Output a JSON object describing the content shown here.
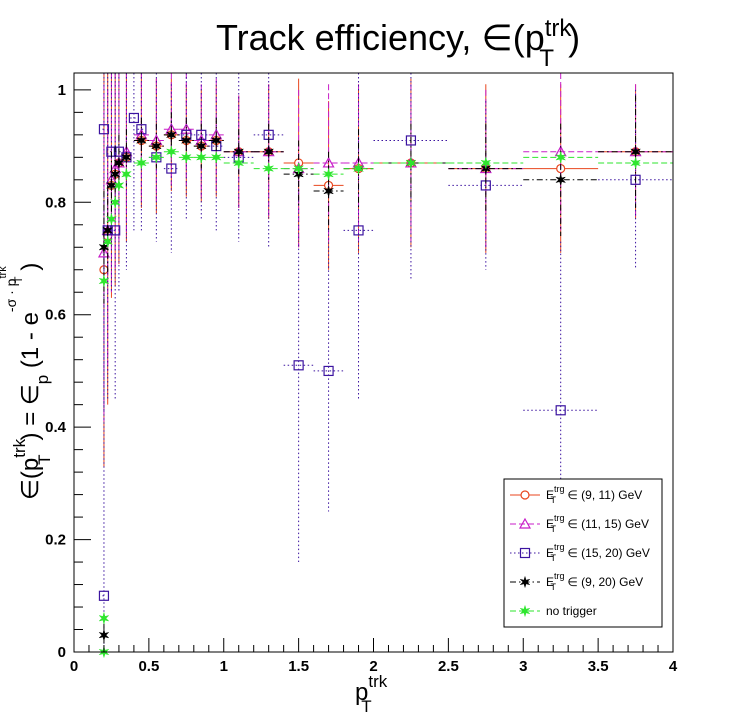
{
  "chart_data": {
    "type": "scatter",
    "title": "Track efficiency, ∈(p",
    "title_sup": "trk",
    "title_sub": "T",
    "title_end": ")",
    "xlabel": "p",
    "xlabel_sup": "trk",
    "xlabel_sub": "T",
    "ylabel_parts": {
      "a": "∈(p",
      "a_sup": "trk",
      "a_sub": "T",
      "b": ") = ∈",
      "b_sub": "p",
      "c": " (1 - e",
      "exp": "-σ · p",
      "exp_sup": "trk",
      "exp_sub": "T",
      "d": ")"
    },
    "xlim": [
      0,
      4
    ],
    "ylim": [
      0,
      1.03
    ],
    "xticks": [
      0,
      0.5,
      1,
      1.5,
      2,
      2.5,
      3,
      3.5,
      4
    ],
    "xtick_labels": [
      "0",
      "0.5",
      "1",
      "1.5",
      "2",
      "2.5",
      "3",
      "3.5",
      "4"
    ],
    "yticks": [
      0,
      0.2,
      0.4,
      0.6,
      0.8,
      1
    ],
    "ytick_labels": [
      "0",
      "0.2",
      "0.4",
      "0.6",
      "0.8",
      "1"
    ],
    "grid": false,
    "legend_position": "bottom-right",
    "series": [
      {
        "label_main": "E",
        "label_sup": "trg",
        "label_sub": "T",
        "label_rest": " ∈ (9, 11) GeV",
        "color": "#e8461e",
        "marker": "circle-open",
        "line": "solid",
        "points": [
          {
            "x": 0.2,
            "y": 0.68,
            "xe": 0.01,
            "ye": 0.35
          },
          {
            "x": 0.225,
            "y": 0.74,
            "xe": 0.01,
            "ye": 0.3
          },
          {
            "x": 0.25,
            "y": 0.83,
            "xe": 0.01,
            "ye": 0.2
          },
          {
            "x": 0.275,
            "y": 0.85,
            "xe": 0.01,
            "ye": 0.2
          },
          {
            "x": 0.3,
            "y": 0.87,
            "xe": 0.025,
            "ye": 0.18
          },
          {
            "x": 0.35,
            "y": 0.88,
            "xe": 0.025,
            "ye": 0.15
          },
          {
            "x": 0.45,
            "y": 0.91,
            "xe": 0.05,
            "ye": 0.12
          },
          {
            "x": 0.55,
            "y": 0.9,
            "xe": 0.05,
            "ye": 0.12
          },
          {
            "x": 0.65,
            "y": 0.92,
            "xe": 0.05,
            "ye": 0.1
          },
          {
            "x": 0.75,
            "y": 0.91,
            "xe": 0.05,
            "ye": 0.1
          },
          {
            "x": 0.85,
            "y": 0.9,
            "xe": 0.05,
            "ye": 0.1
          },
          {
            "x": 0.95,
            "y": 0.91,
            "xe": 0.05,
            "ye": 0.1
          },
          {
            "x": 1.1,
            "y": 0.89,
            "xe": 0.1,
            "ye": 0.1
          },
          {
            "x": 1.3,
            "y": 0.89,
            "xe": 0.1,
            "ye": 0.12
          },
          {
            "x": 1.5,
            "y": 0.87,
            "xe": 0.1,
            "ye": 0.15
          },
          {
            "x": 1.7,
            "y": 0.83,
            "xe": 0.1,
            "ye": 0.15
          },
          {
            "x": 1.9,
            "y": 0.86,
            "xe": 0.1,
            "ye": 0.15
          },
          {
            "x": 2.25,
            "y": 0.87,
            "xe": 0.25,
            "ye": 0.15
          },
          {
            "x": 2.75,
            "y": 0.86,
            "xe": 0.25,
            "ye": 0.15
          },
          {
            "x": 3.25,
            "y": 0.86,
            "xe": 0.25,
            "ye": 0.15
          },
          {
            "x": 3.75,
            "y": 0.89,
            "xe": 0.25,
            "ye": 0.12
          }
        ]
      },
      {
        "label_main": "E",
        "label_sup": "trg",
        "label_sub": "T",
        "label_rest": " ∈ (11, 15) GeV",
        "color": "#c81ec8",
        "marker": "triangle-open",
        "line": "dashed",
        "points": [
          {
            "x": 0.2,
            "y": 0.71,
            "xe": 0.01,
            "ye": 0.3
          },
          {
            "x": 0.225,
            "y": 0.75,
            "xe": 0.01,
            "ye": 0.25
          },
          {
            "x": 0.25,
            "y": 0.84,
            "xe": 0.01,
            "ye": 0.2
          },
          {
            "x": 0.275,
            "y": 0.86,
            "xe": 0.01,
            "ye": 0.18
          },
          {
            "x": 0.3,
            "y": 0.87,
            "xe": 0.025,
            "ye": 0.16
          },
          {
            "x": 0.35,
            "y": 0.89,
            "xe": 0.025,
            "ye": 0.15
          },
          {
            "x": 0.45,
            "y": 0.92,
            "xe": 0.05,
            "ye": 0.12
          },
          {
            "x": 0.55,
            "y": 0.91,
            "xe": 0.05,
            "ye": 0.11
          },
          {
            "x": 0.65,
            "y": 0.93,
            "xe": 0.05,
            "ye": 0.1
          },
          {
            "x": 0.75,
            "y": 0.93,
            "xe": 0.05,
            "ye": 0.1
          },
          {
            "x": 0.85,
            "y": 0.91,
            "xe": 0.05,
            "ye": 0.1
          },
          {
            "x": 0.95,
            "y": 0.92,
            "xe": 0.05,
            "ye": 0.1
          },
          {
            "x": 1.1,
            "y": 0.89,
            "xe": 0.1,
            "ye": 0.1
          },
          {
            "x": 1.3,
            "y": 0.89,
            "xe": 0.1,
            "ye": 0.12
          },
          {
            "x": 1.5,
            "y": 0.86,
            "xe": 0.1,
            "ye": 0.14
          },
          {
            "x": 1.7,
            "y": 0.87,
            "xe": 0.1,
            "ye": 0.14
          },
          {
            "x": 1.9,
            "y": 0.87,
            "xe": 0.1,
            "ye": 0.14
          },
          {
            "x": 2.25,
            "y": 0.87,
            "xe": 0.25,
            "ye": 0.14
          },
          {
            "x": 2.75,
            "y": 0.86,
            "xe": 0.25,
            "ye": 0.14
          },
          {
            "x": 3.25,
            "y": 0.89,
            "xe": 0.25,
            "ye": 0.14
          },
          {
            "x": 3.75,
            "y": 0.89,
            "xe": 0.25,
            "ye": 0.12
          }
        ]
      },
      {
        "label_main": "E",
        "label_sup": "trg",
        "label_sub": "T",
        "label_rest": " ∈ (15, 20) GeV",
        "color": "#3c14a0",
        "marker": "square-open",
        "line": "dotted",
        "points": [
          {
            "x": 0.2,
            "y": 0.1,
            "xe": 0.01,
            "ye": 0.7
          },
          {
            "x": 0.2,
            "y": 0.93,
            "xe": 0.01,
            "ye": 0.5
          },
          {
            "x": 0.225,
            "y": 0.75,
            "xe": 0.01,
            "ye": 0.3
          },
          {
            "x": 0.25,
            "y": 0.89,
            "xe": 0.01,
            "ye": 0.25
          },
          {
            "x": 0.275,
            "y": 0.75,
            "xe": 0.01,
            "ye": 0.3
          },
          {
            "x": 0.3,
            "y": 0.89,
            "xe": 0.025,
            "ye": 0.25
          },
          {
            "x": 0.35,
            "y": 0.88,
            "xe": 0.025,
            "ye": 0.2
          },
          {
            "x": 0.4,
            "y": 0.95,
            "xe": 0.025,
            "ye": 0.2
          },
          {
            "x": 0.45,
            "y": 0.93,
            "xe": 0.025,
            "ye": 0.18
          },
          {
            "x": 0.55,
            "y": 0.88,
            "xe": 0.05,
            "ye": 0.15
          },
          {
            "x": 0.65,
            "y": 0.86,
            "xe": 0.05,
            "ye": 0.15
          },
          {
            "x": 0.75,
            "y": 0.92,
            "xe": 0.05,
            "ye": 0.15
          },
          {
            "x": 0.85,
            "y": 0.92,
            "xe": 0.05,
            "ye": 0.15
          },
          {
            "x": 0.95,
            "y": 0.9,
            "xe": 0.05,
            "ye": 0.15
          },
          {
            "x": 1.1,
            "y": 0.88,
            "xe": 0.1,
            "ye": 0.15
          },
          {
            "x": 1.3,
            "y": 0.92,
            "xe": 0.1,
            "ye": 0.2
          },
          {
            "x": 1.5,
            "y": 0.51,
            "xe": 0.1,
            "ye": 0.35
          },
          {
            "x": 1.7,
            "y": 0.5,
            "xe": 0.1,
            "ye": 0.25
          },
          {
            "x": 1.9,
            "y": 0.75,
            "xe": 0.1,
            "ye": 0.3
          },
          {
            "x": 2.25,
            "y": 0.91,
            "xe": 0.25,
            "ye": 0.25
          },
          {
            "x": 2.75,
            "y": 0.83,
            "xe": 0.25,
            "ye": 0.15
          },
          {
            "x": 3.25,
            "y": 0.43,
            "xe": 0.25,
            "ye": 0.3
          },
          {
            "x": 3.75,
            "y": 0.84,
            "xe": 0.25,
            "ye": 0.16
          }
        ]
      },
      {
        "label_main": "E",
        "label_sup": "trg",
        "label_sub": "T",
        "label_rest": " ∈ (9, 20) GeV",
        "color": "#000000",
        "marker": "star",
        "line": "dashdot",
        "points": [
          {
            "x": 0.2,
            "y": 0.03,
            "xe": 0.01,
            "ye": 0.02
          },
          {
            "x": 0.2,
            "y": 0.72,
            "xe": 0.01,
            "ye": 0.1
          },
          {
            "x": 0.225,
            "y": 0.75,
            "xe": 0.01,
            "ye": 0.08
          },
          {
            "x": 0.25,
            "y": 0.83,
            "xe": 0.01,
            "ye": 0.06
          },
          {
            "x": 0.275,
            "y": 0.85,
            "xe": 0.01,
            "ye": 0.05
          },
          {
            "x": 0.3,
            "y": 0.87,
            "xe": 0.025,
            "ye": 0.05
          },
          {
            "x": 0.35,
            "y": 0.88,
            "xe": 0.025,
            "ye": 0.05
          },
          {
            "x": 0.45,
            "y": 0.91,
            "xe": 0.05,
            "ye": 0.04
          },
          {
            "x": 0.55,
            "y": 0.9,
            "xe": 0.05,
            "ye": 0.04
          },
          {
            "x": 0.65,
            "y": 0.92,
            "xe": 0.05,
            "ye": 0.04
          },
          {
            "x": 0.75,
            "y": 0.91,
            "xe": 0.05,
            "ye": 0.04
          },
          {
            "x": 0.85,
            "y": 0.9,
            "xe": 0.05,
            "ye": 0.04
          },
          {
            "x": 0.95,
            "y": 0.91,
            "xe": 0.05,
            "ye": 0.04
          },
          {
            "x": 1.1,
            "y": 0.89,
            "xe": 0.1,
            "ye": 0.04
          },
          {
            "x": 1.3,
            "y": 0.89,
            "xe": 0.1,
            "ye": 0.05
          },
          {
            "x": 1.5,
            "y": 0.85,
            "xe": 0.1,
            "ye": 0.06
          },
          {
            "x": 1.7,
            "y": 0.82,
            "xe": 0.1,
            "ye": 0.07
          },
          {
            "x": 1.9,
            "y": 0.86,
            "xe": 0.1,
            "ye": 0.07
          },
          {
            "x": 2.25,
            "y": 0.87,
            "xe": 0.25,
            "ye": 0.07
          },
          {
            "x": 2.75,
            "y": 0.86,
            "xe": 0.25,
            "ye": 0.08
          },
          {
            "x": 3.25,
            "y": 0.84,
            "xe": 0.25,
            "ye": 0.1
          },
          {
            "x": 3.75,
            "y": 0.89,
            "xe": 0.25,
            "ye": 0.1
          }
        ]
      },
      {
        "label_main": "no trigger",
        "label_sup": "",
        "label_sub": "",
        "label_rest": "",
        "color": "#2ee62e",
        "marker": "star",
        "line": "dashed",
        "points": [
          {
            "x": 0.2,
            "y": 0.0,
            "xe": 0.01,
            "ye": 0.005
          },
          {
            "x": 0.2,
            "y": 0.06,
            "xe": 0.01,
            "ye": 0.01
          },
          {
            "x": 0.2,
            "y": 0.66,
            "xe": 0.01,
            "ye": 0.01
          },
          {
            "x": 0.225,
            "y": 0.73,
            "xe": 0.01,
            "ye": 0.01
          },
          {
            "x": 0.25,
            "y": 0.77,
            "xe": 0.01,
            "ye": 0.01
          },
          {
            "x": 0.275,
            "y": 0.8,
            "xe": 0.01,
            "ye": 0.01
          },
          {
            "x": 0.3,
            "y": 0.83,
            "xe": 0.025,
            "ye": 0.01
          },
          {
            "x": 0.35,
            "y": 0.85,
            "xe": 0.025,
            "ye": 0.01
          },
          {
            "x": 0.45,
            "y": 0.87,
            "xe": 0.05,
            "ye": 0.01
          },
          {
            "x": 0.55,
            "y": 0.88,
            "xe": 0.05,
            "ye": 0.01
          },
          {
            "x": 0.65,
            "y": 0.89,
            "xe": 0.05,
            "ye": 0.01
          },
          {
            "x": 0.75,
            "y": 0.88,
            "xe": 0.05,
            "ye": 0.01
          },
          {
            "x": 0.85,
            "y": 0.88,
            "xe": 0.05,
            "ye": 0.01
          },
          {
            "x": 0.95,
            "y": 0.88,
            "xe": 0.05,
            "ye": 0.01
          },
          {
            "x": 1.1,
            "y": 0.87,
            "xe": 0.1,
            "ye": 0.01
          },
          {
            "x": 1.3,
            "y": 0.86,
            "xe": 0.1,
            "ye": 0.01
          },
          {
            "x": 1.5,
            "y": 0.86,
            "xe": 0.1,
            "ye": 0.01
          },
          {
            "x": 1.7,
            "y": 0.85,
            "xe": 0.1,
            "ye": 0.01
          },
          {
            "x": 1.9,
            "y": 0.86,
            "xe": 0.1,
            "ye": 0.01
          },
          {
            "x": 2.25,
            "y": 0.87,
            "xe": 0.25,
            "ye": 0.01
          },
          {
            "x": 2.75,
            "y": 0.87,
            "xe": 0.25,
            "ye": 0.01
          },
          {
            "x": 3.25,
            "y": 0.88,
            "xe": 0.25,
            "ye": 0.01
          },
          {
            "x": 3.75,
            "y": 0.87,
            "xe": 0.25,
            "ye": 0.01
          }
        ]
      }
    ]
  }
}
